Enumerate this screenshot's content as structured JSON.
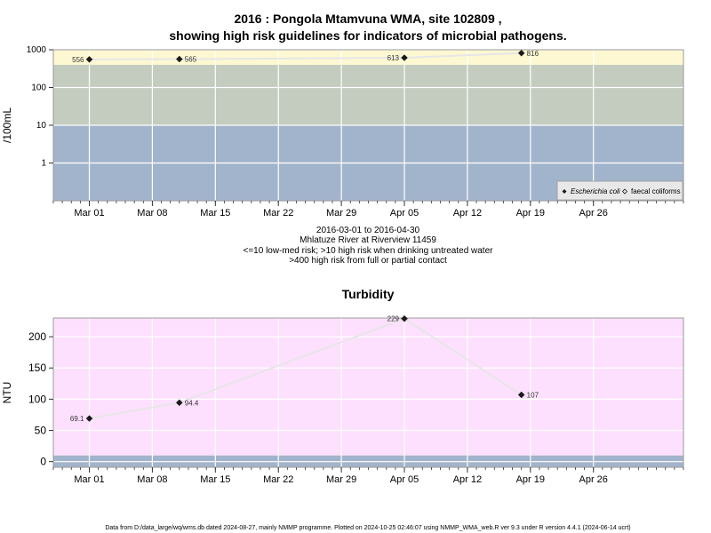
{
  "chart_data": [
    {
      "type": "scatter",
      "title_line1": "2016 : Pongola Mtamvuna WMA, site 102809 ,",
      "title_line2": "showing high risk guidelines for indicators of microbial pathogens.",
      "ylabel": "/100mL",
      "y_scale": "log",
      "ylim": [
        0.1,
        1000
      ],
      "yticks": [
        {
          "v": 1,
          "label": "1"
        },
        {
          "v": 10,
          "label": "10"
        },
        {
          "v": 100,
          "label": "100"
        },
        {
          "v": 1000,
          "label": "1000"
        }
      ],
      "xlim": [
        "2016-02-26",
        "2016-05-06"
      ],
      "xticks": [
        {
          "date": "2016-03-01",
          "label": "Mar 01"
        },
        {
          "date": "2016-03-08",
          "label": "Mar 08"
        },
        {
          "date": "2016-03-15",
          "label": "Mar 15"
        },
        {
          "date": "2016-03-22",
          "label": "Mar 22"
        },
        {
          "date": "2016-03-29",
          "label": "Mar 29"
        },
        {
          "date": "2016-04-05",
          "label": "Apr 05"
        },
        {
          "date": "2016-04-12",
          "label": "Apr 12"
        },
        {
          "date": "2016-04-19",
          "label": "Apr 19"
        },
        {
          "date": "2016-04-26",
          "label": "Apr 26"
        }
      ],
      "bands": [
        {
          "from": 0.1,
          "to": 10,
          "color": "#a2b4cb"
        },
        {
          "from": 10,
          "to": 400,
          "color": "#c3ccbf"
        },
        {
          "from": 400,
          "to": 1000,
          "color": "#fdf8d2"
        }
      ],
      "series": [
        {
          "name": "Escherichia coli",
          "marker": "filled-diamond",
          "color": "#1a1a1a",
          "points": [
            {
              "x": "2016-03-01",
              "y": 556,
              "label": "556",
              "side": "left"
            },
            {
              "x": "2016-03-11",
              "y": 565,
              "label": "565",
              "side": "right"
            },
            {
              "x": "2016-04-05",
              "y": 613,
              "label": "613",
              "side": "left"
            },
            {
              "x": "2016-04-18",
              "y": 816,
              "label": "816",
              "side": "right"
            }
          ]
        },
        {
          "name": "faecal coliforms",
          "marker": "open-diamond",
          "color": "#1a1a1a",
          "points": []
        }
      ],
      "legend_position": "bottom-right",
      "caption": [
        "2016-03-01 to 2016-04-30",
        "Mhlatuze River at Riverview 11459",
        "<=10 low-med risk; >10 high risk when drinking untreated water",
        ">400 high risk from full or partial contact"
      ],
      "grid": true
    },
    {
      "type": "line",
      "title": "Turbidity",
      "ylabel": "NTU",
      "ylim": [
        -9,
        230
      ],
      "yticks": [
        {
          "v": 0,
          "label": "0"
        },
        {
          "v": 50,
          "label": "50"
        },
        {
          "v": 100,
          "label": "100"
        },
        {
          "v": 150,
          "label": "150"
        },
        {
          "v": 200,
          "label": "200"
        }
      ],
      "xlim": [
        "2016-02-26",
        "2016-05-06"
      ],
      "xticks": [
        {
          "date": "2016-03-01",
          "label": "Mar 01"
        },
        {
          "date": "2016-03-08",
          "label": "Mar 08"
        },
        {
          "date": "2016-03-15",
          "label": "Mar 15"
        },
        {
          "date": "2016-03-22",
          "label": "Mar 22"
        },
        {
          "date": "2016-03-29",
          "label": "Mar 29"
        },
        {
          "date": "2016-04-05",
          "label": "Apr 05"
        },
        {
          "date": "2016-04-12",
          "label": "Apr 12"
        },
        {
          "date": "2016-04-19",
          "label": "Apr 19"
        },
        {
          "date": "2016-04-26",
          "label": "Apr 26"
        }
      ],
      "bands": [
        {
          "from": -9,
          "to": 10,
          "color": "#a2b4cb"
        },
        {
          "from": 10,
          "to": 230,
          "color": "#fde0fd"
        }
      ],
      "series": [
        {
          "name": "Turbidity",
          "marker": "filled-diamond",
          "color": "#1a1a1a",
          "points": [
            {
              "x": "2016-03-01",
              "y": 69.1,
              "label": "69.1",
              "side": "left"
            },
            {
              "x": "2016-03-11",
              "y": 94.4,
              "label": "94.4",
              "side": "right"
            },
            {
              "x": "2016-04-05",
              "y": 229,
              "label": "229",
              "side": "left"
            },
            {
              "x": "2016-04-18",
              "y": 107,
              "label": "107",
              "side": "right"
            }
          ]
        }
      ],
      "grid": true
    }
  ],
  "footer": "Data from D:/data_large/wq/wms.db dated 2024-08-27, mainly NMMP programme. Plotted on 2024-10-25 02:46:07 using NMMP_WMA_web.R ver 9.3 under R version 4.4.1 (2024-06-14 ucrt)"
}
